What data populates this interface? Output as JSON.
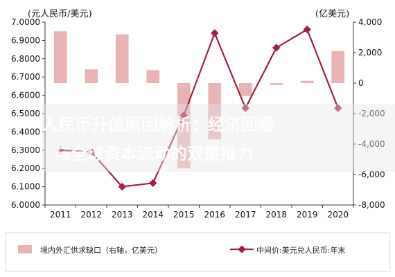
{
  "chart_data": {
    "type": "bar+line",
    "categories": [
      "2011",
      "2012",
      "2013",
      "2014",
      "2015",
      "2016",
      "2017",
      "2018",
      "2019",
      "2020"
    ],
    "left_axis": {
      "unit": "(元人民币/美元)",
      "ylim": [
        6.0,
        7.0
      ],
      "ticks": [
        "6.0000",
        "6.1000",
        "6.2000",
        "6.3000",
        "6.4000",
        "6.5000",
        "6.6000",
        "6.7000",
        "6.8000",
        "6.9000",
        "7.0000"
      ]
    },
    "right_axis": {
      "unit": "(亿美元)",
      "ylim": [
        -8000,
        4000
      ],
      "ticks": [
        "-8,000",
        "-6,000",
        "-4,000",
        "-2,000",
        "0",
        "2,000",
        "4,000"
      ]
    },
    "series": [
      {
        "name": "境内外汇供求缺口（右轴，亿美元）",
        "type": "bar",
        "axis": "right",
        "color": "#e9b3b3",
        "values": [
          3400,
          900,
          3200,
          850,
          -5600,
          -3700,
          -850,
          -120,
          150,
          2100
        ]
      },
      {
        "name": "中间价:美元兑人民币:年末",
        "type": "line",
        "axis": "left",
        "color": "#a51e3a",
        "values": [
          6.3,
          6.29,
          6.1,
          6.12,
          6.49,
          6.94,
          6.53,
          6.86,
          6.96,
          6.53
        ]
      }
    ],
    "watermark": [
      "人民币升值原因解析：经济回暖",
      "与全球资本流动的双重推力"
    ],
    "grid": false,
    "legend_position": "bottom"
  }
}
